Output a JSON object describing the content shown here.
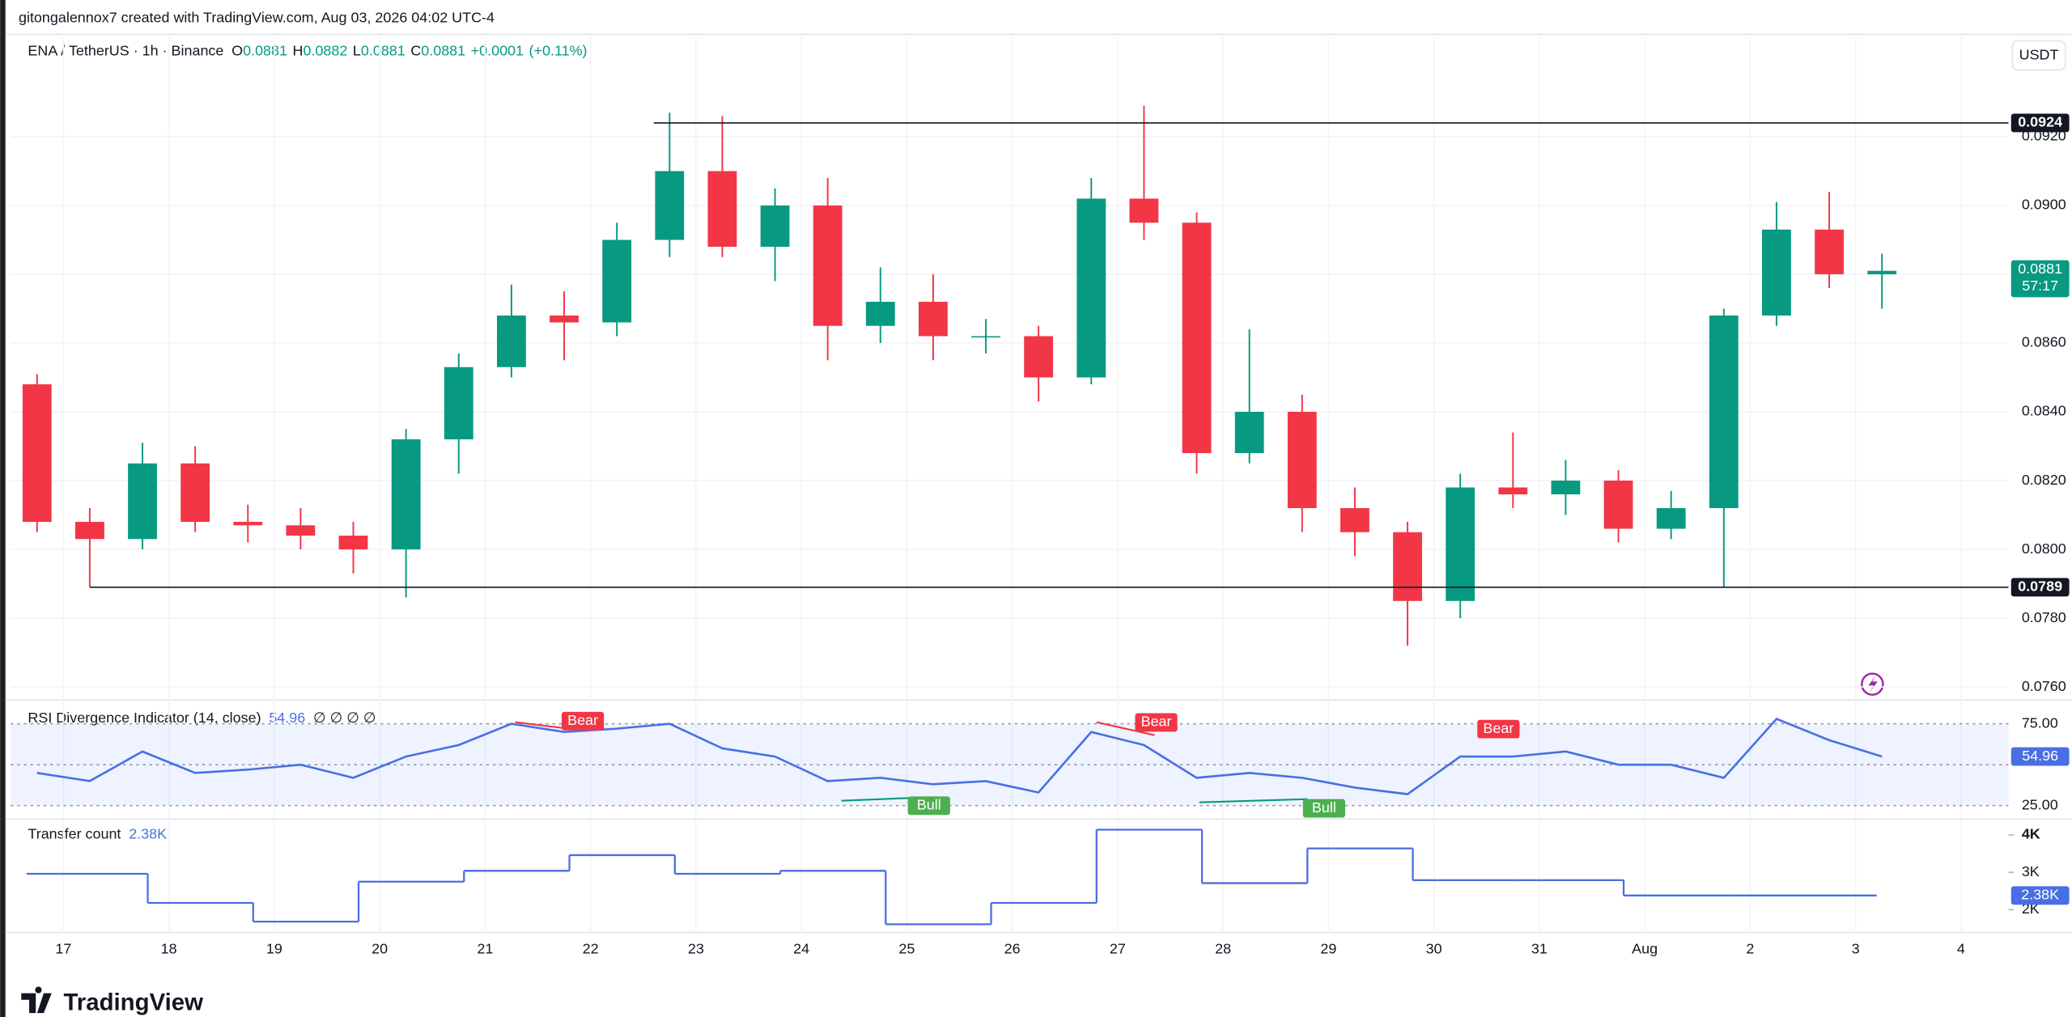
{
  "header": {
    "attribution": "gitongalennox7 created with TradingView.com, Aug 03, 2026 04:02 UTC-4",
    "brand": "TradingView"
  },
  "chart_data": [
    {
      "type": "candlestick",
      "title": "ENA / TetherUS · 1h · Binance",
      "legend_letters": [
        "O",
        "H",
        "L",
        "C"
      ],
      "legend_values": [
        0.0881,
        0.0882,
        0.0881,
        0.0881
      ],
      "change": 0.0001,
      "change_label": "+0.0001",
      "change_pct": 0.11,
      "change_pct_label": "(+0.11%)",
      "currency": "USDT",
      "up_color": "#089981",
      "down_color": "#f23645",
      "open": [
        0.0848,
        0.0808,
        0.0803,
        0.0825,
        0.0808,
        0.0807,
        0.0804,
        0.08,
        0.0832,
        0.0853,
        0.0868,
        0.0866,
        0.089,
        0.091,
        0.0888,
        0.09,
        0.0865,
        0.0872,
        0.0862,
        0.0862,
        0.085,
        0.0902,
        0.0895,
        0.0828,
        0.084,
        0.0812,
        0.0805,
        0.0785,
        0.0818,
        0.0816,
        0.082,
        0.0806,
        0.0812,
        0.0868,
        0.0893,
        0.088
      ],
      "high": [
        0.0851,
        0.0812,
        0.0831,
        0.083,
        0.0813,
        0.0812,
        0.0808,
        0.0835,
        0.0857,
        0.0877,
        0.0875,
        0.0895,
        0.0927,
        0.0926,
        0.0905,
        0.0908,
        0.0882,
        0.088,
        0.0867,
        0.0865,
        0.0908,
        0.0929,
        0.0898,
        0.0864,
        0.0845,
        0.0818,
        0.0808,
        0.0822,
        0.0834,
        0.0826,
        0.0823,
        0.0817,
        0.087,
        0.0901,
        0.0904,
        0.0886
      ],
      "low": [
        0.0805,
        0.0789,
        0.08,
        0.0805,
        0.0802,
        0.08,
        0.0793,
        0.0786,
        0.0822,
        0.085,
        0.0855,
        0.0862,
        0.0885,
        0.0885,
        0.0878,
        0.0855,
        0.086,
        0.0855,
        0.0857,
        0.0843,
        0.0848,
        0.089,
        0.0822,
        0.0825,
        0.0805,
        0.0798,
        0.0772,
        0.078,
        0.0812,
        0.081,
        0.0802,
        0.0803,
        0.0789,
        0.0865,
        0.0876,
        0.087
      ],
      "close": [
        0.0808,
        0.0803,
        0.0825,
        0.0808,
        0.0807,
        0.0804,
        0.08,
        0.0832,
        0.0853,
        0.0868,
        0.0866,
        0.089,
        0.091,
        0.0888,
        0.09,
        0.0865,
        0.0872,
        0.0862,
        0.0862,
        0.085,
        0.0902,
        0.0895,
        0.0828,
        0.084,
        0.0812,
        0.0805,
        0.0785,
        0.0818,
        0.0816,
        0.082,
        0.0806,
        0.0812,
        0.0868,
        0.0893,
        0.088,
        0.0881
      ],
      "ylim": [
        0.07562,
        0.0949
      ],
      "yticks": [
        {
          "value": 0.076,
          "label": "0.0760"
        },
        {
          "value": 0.078,
          "label": "0.0780"
        },
        {
          "value": 0.08,
          "label": "0.0800"
        },
        {
          "value": 0.082,
          "label": "0.0820"
        },
        {
          "value": 0.084,
          "label": "0.0840"
        },
        {
          "value": 0.086,
          "label": "0.0860"
        },
        {
          "value": 0.088,
          "label": "0.0880"
        },
        {
          "value": 0.09,
          "label": "0.0900"
        },
        {
          "value": 0.092,
          "label": "0.0920"
        }
      ],
      "xlim": [
        0,
        37.9
      ],
      "xticks": [
        {
          "value": 1,
          "label": "17"
        },
        {
          "value": 3,
          "label": "18"
        },
        {
          "value": 5,
          "label": "19"
        },
        {
          "value": 7,
          "label": "20"
        },
        {
          "value": 9,
          "label": "21"
        },
        {
          "value": 11,
          "label": "22"
        },
        {
          "value": 13,
          "label": "23"
        },
        {
          "value": 15,
          "label": "24"
        },
        {
          "value": 17,
          "label": "25"
        },
        {
          "value": 19,
          "label": "26"
        },
        {
          "value": 21,
          "label": "27"
        },
        {
          "value": 23,
          "label": "28"
        },
        {
          "value": 25,
          "label": "29"
        },
        {
          "value": 27,
          "label": "30"
        },
        {
          "value": 29,
          "label": "31"
        },
        {
          "value": 31,
          "label": "Aug"
        },
        {
          "value": 33,
          "label": "2"
        },
        {
          "value": 35,
          "label": "3"
        },
        {
          "value": 37,
          "label": "4"
        }
      ],
      "levels": [
        0.0924,
        0.0789
      ],
      "level_labels": [
        "0.0924",
        "0.0789"
      ],
      "last_price": 0.0881,
      "last_price_label": "0.0881",
      "countdown": "57:17"
    },
    {
      "type": "line",
      "title": "RSI Divergence Indicator (14, close)",
      "current": 54.96,
      "flags": "∅ ∅ ∅ ∅",
      "color": "#4a6fe3",
      "values": [
        45,
        40,
        58,
        45,
        47,
        50,
        42,
        55,
        62,
        75,
        70,
        72,
        75,
        60,
        55,
        40,
        42,
        38,
        40,
        33,
        70,
        62,
        42,
        45,
        42,
        36,
        32,
        55,
        55,
        58,
        50,
        50,
        42,
        78,
        65,
        54.96
      ],
      "annotations": [
        "Bear",
        "Bear",
        "Bear",
        "Bull",
        "Bull"
      ],
      "ylim": [
        16.9,
        89.5
      ],
      "yticks": [
        {
          "value": 75,
          "label": "75.00"
        },
        {
          "value": 25,
          "label": "25.00"
        }
      ]
    },
    {
      "type": "step",
      "title": "Transfer count",
      "current": 2380,
      "current_label": "2.38K",
      "color": "#4a6fe3",
      "values": [
        2960,
        2180,
        1680,
        2750,
        3040,
        3460,
        2960,
        3040,
        1610,
        2180,
        4140,
        2710,
        3640,
        2790,
        2790,
        2380,
        2380,
        2380
      ],
      "ylim": [
        1390,
        4430
      ],
      "yticks": [
        {
          "value": 4000,
          "label": "4K"
        },
        {
          "value": 3000,
          "label": "3K"
        },
        {
          "value": 2000,
          "label": "2K"
        }
      ]
    }
  ]
}
